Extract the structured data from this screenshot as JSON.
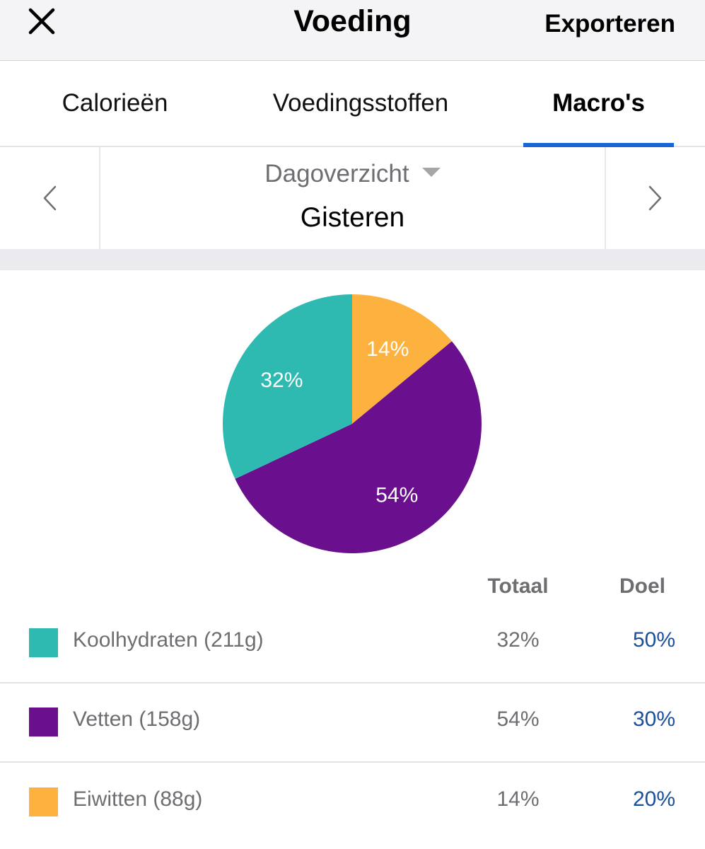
{
  "header": {
    "title": "Voeding",
    "close_icon": "close-icon",
    "export_label": "Exporteren"
  },
  "tabs": [
    {
      "label": "Calorieën",
      "active": false
    },
    {
      "label": "Voedingsstoffen",
      "active": false
    },
    {
      "label": "Macro's",
      "active": true
    }
  ],
  "period": {
    "selector_label": "Dagoverzicht",
    "date_label": "Gisteren",
    "prev_icon": "chevron-left-icon",
    "next_icon": "chevron-right-icon"
  },
  "colors": {
    "carbs": "#2fbab1",
    "fat": "#6a0f8e",
    "protein": "#fdb23f",
    "accent": "#1a66d6",
    "goal_text": "#1b4f9c"
  },
  "table": {
    "headers": {
      "total": "Totaal",
      "goal": "Doel"
    },
    "rows": [
      {
        "name": "Koolhydraten (211g)",
        "total": "32%",
        "goal": "50%",
        "color": "#2fbab1"
      },
      {
        "name": "Vetten (158g)",
        "total": "54%",
        "goal": "30%",
        "color": "#6a0f8e"
      },
      {
        "name": "Eiwitten (88g)",
        "total": "14%",
        "goal": "20%",
        "color": "#fdb23f"
      }
    ]
  },
  "chart_data": {
    "type": "pie",
    "categories": [
      "Eiwitten",
      "Vetten",
      "Koolhydraten"
    ],
    "values": [
      14,
      54,
      32
    ],
    "labels": [
      "14%",
      "54%",
      "32%"
    ],
    "colors": [
      "#fdb23f",
      "#6a0f8e",
      "#2fbab1"
    ],
    "start": "top, clockwise"
  }
}
